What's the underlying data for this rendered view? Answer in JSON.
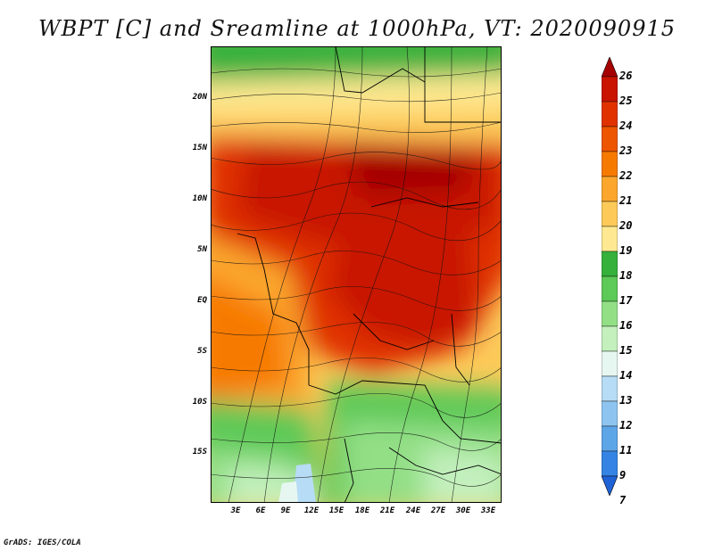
{
  "title": "WBPT [C] and Sreamline at 1000hPa, VT: 2020090915",
  "credit": "GrADS: IGES/COLA",
  "map": {
    "lat_labels": [
      "20N",
      "15N",
      "10N",
      "5N",
      "EQ",
      "5S",
      "10S",
      "15S"
    ],
    "lon_labels": [
      "3E",
      "6E",
      "9E",
      "12E",
      "15E",
      "18E",
      "21E",
      "24E",
      "27E",
      "30E",
      "33E"
    ]
  },
  "colorbar": {
    "levels": [
      "26",
      "25",
      "24",
      "23",
      "22",
      "21",
      "20",
      "19",
      "18",
      "17",
      "16",
      "15",
      "14",
      "13",
      "12",
      "11",
      "9",
      "7"
    ],
    "colors": [
      "#a50000",
      "#c81400",
      "#e03200",
      "#ee5500",
      "#f77a00",
      "#fba72d",
      "#fdca59",
      "#fee992",
      "#36b13c",
      "#5dc957",
      "#93df86",
      "#c3f0bd",
      "#e6f7f2",
      "#b7dcf5",
      "#8ec5f0",
      "#5ca6e8",
      "#3584e4",
      "#1e62d6"
    ]
  }
}
